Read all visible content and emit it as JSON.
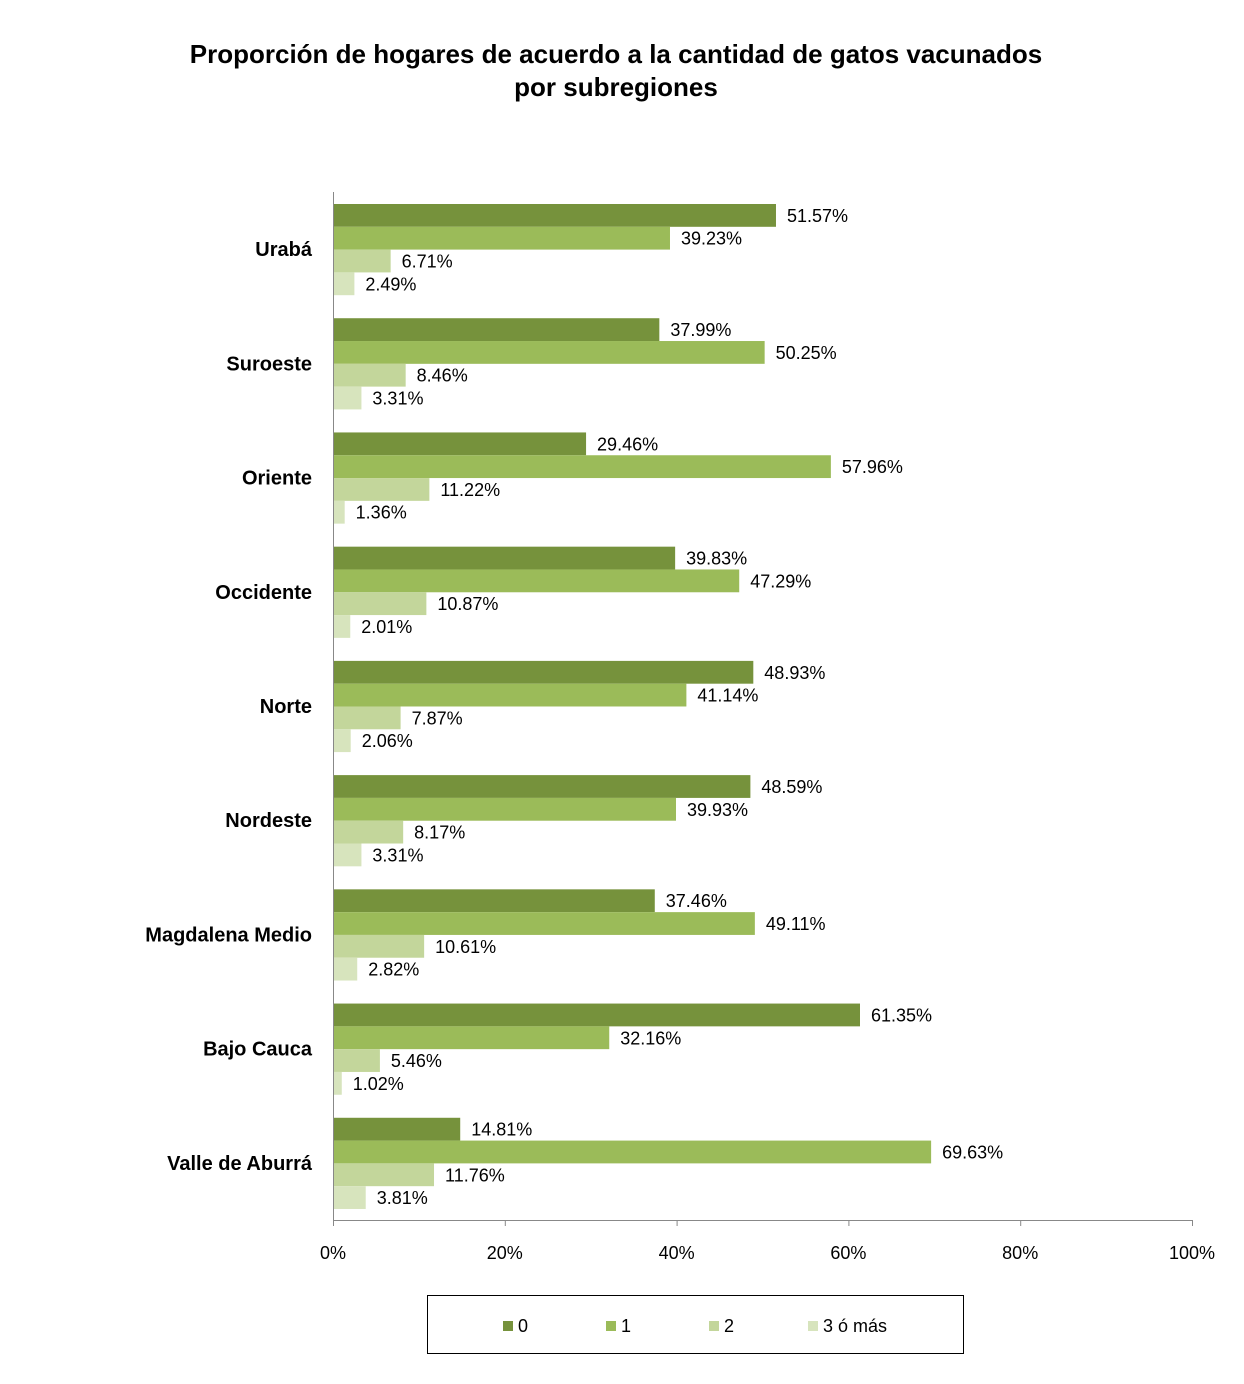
{
  "chart_data": {
    "type": "bar",
    "orientation": "horizontal",
    "title_lines": [
      "Proporción de hogares de acuerdo a la cantidad de gatos vacunados",
      "por subregiones"
    ],
    "categories": [
      "Urabá",
      "Suroeste",
      "Oriente",
      "Occidente",
      "Norte",
      "Nordeste",
      "Magdalena Medio",
      "Bajo Cauca",
      "Valle de Aburrá"
    ],
    "series": [
      {
        "name": "0",
        "color": "#76923c",
        "values": [
          51.57,
          37.99,
          29.46,
          39.83,
          48.93,
          48.59,
          37.46,
          61.35,
          14.81
        ],
        "labels": [
          "51.57%",
          "37.99%",
          "29.46%",
          "39.83%",
          "48.93%",
          "48.59%",
          "37.46%",
          "61.35%",
          "14.81%"
        ]
      },
      {
        "name": "1",
        "color": "#9bbb59",
        "values": [
          39.23,
          50.25,
          57.96,
          47.29,
          41.14,
          39.93,
          49.11,
          32.16,
          69.63
        ],
        "labels": [
          "39.23%",
          "50.25%",
          "57.96%",
          "47.29%",
          "41.14%",
          "39.93%",
          "49.11%",
          "32.16%",
          "69.63%"
        ]
      },
      {
        "name": "2",
        "color": "#c3d69b",
        "values": [
          6.71,
          8.46,
          11.22,
          10.87,
          7.87,
          8.17,
          10.61,
          5.46,
          11.76
        ],
        "labels": [
          "6.71%",
          "8.46%",
          "11.22%",
          "10.87%",
          "7.87%",
          "8.17%",
          "10.61%",
          "5.46%",
          "11.76%"
        ]
      },
      {
        "name": "3 ó más",
        "color": "#d7e4bd",
        "values": [
          2.49,
          3.31,
          1.36,
          2.01,
          2.06,
          3.31,
          2.82,
          1.02,
          3.81
        ],
        "labels": [
          "2.49%",
          "3.31%",
          "1.36%",
          "2.01%",
          "2.06%",
          "3.31%",
          "2.82%",
          "1.02%",
          "3.81%"
        ]
      }
    ],
    "xlim": [
      0,
      100
    ],
    "x_ticks": [
      "0%",
      "20%",
      "40%",
      "60%",
      "80%",
      "100%"
    ],
    "grid": false,
    "legend_position": "bottom"
  }
}
